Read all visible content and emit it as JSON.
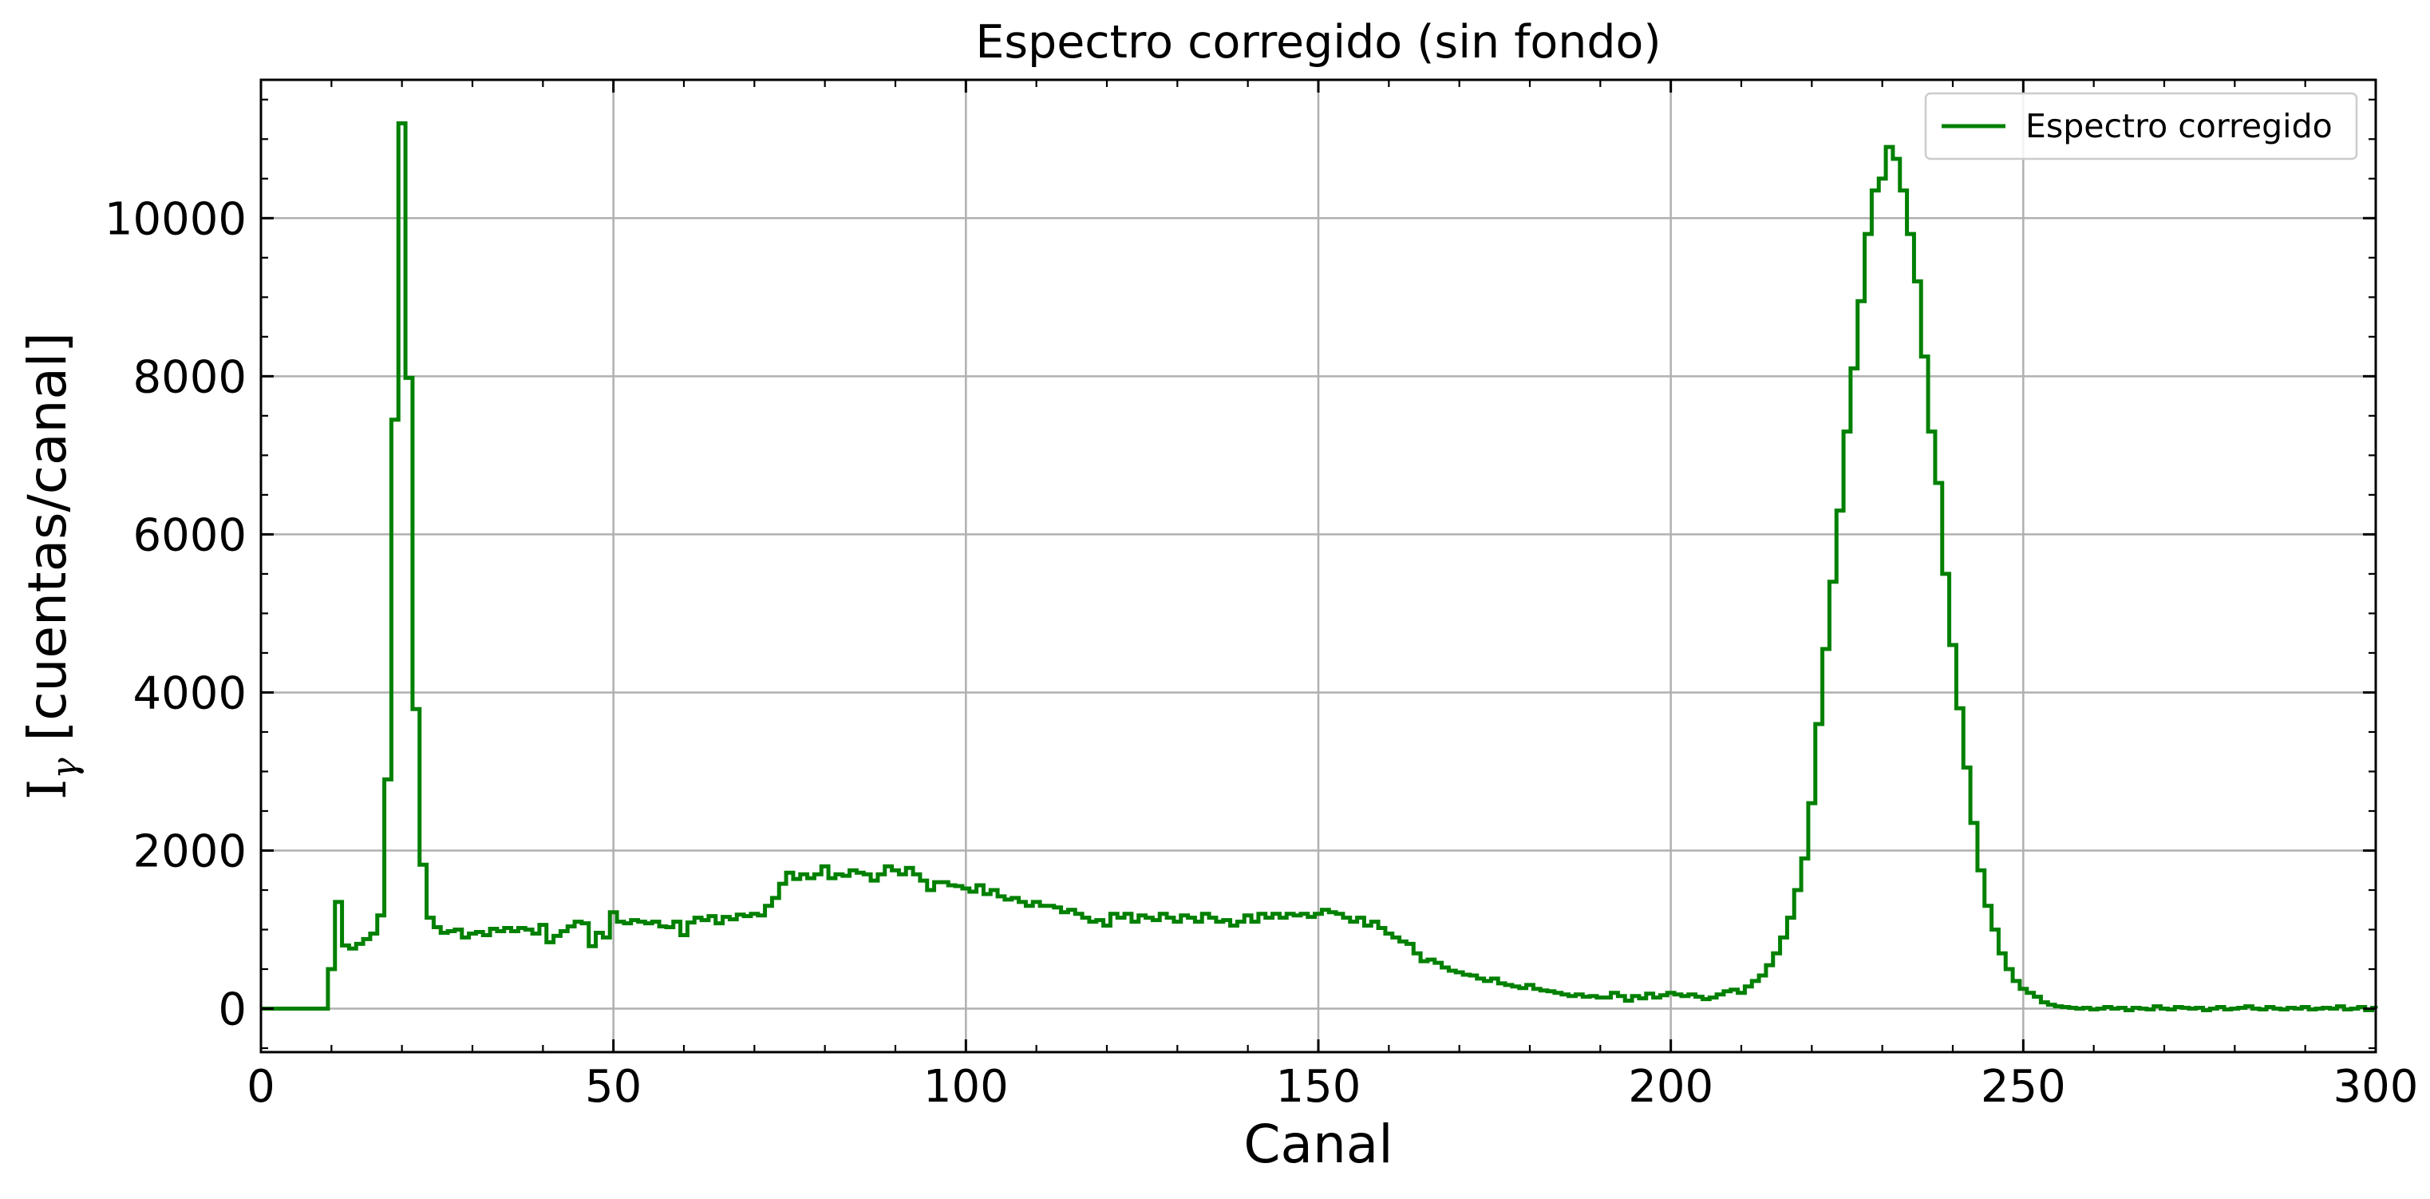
{
  "chart_data": {
    "type": "line",
    "step": true,
    "title": "Espectro corregido (sin fondo)",
    "xlabel": "Canal",
    "ylabel_main": "I",
    "ylabel_sub": "γ",
    "ylabel_rest": " [cuentas/canal]",
    "xlim": [
      0,
      300
    ],
    "ylim": [
      -550,
      11750
    ],
    "xticks": [
      0,
      50,
      100,
      150,
      200,
      250,
      300
    ],
    "yticks": [
      0,
      2000,
      4000,
      6000,
      8000,
      10000
    ],
    "x_minor_step": 10,
    "y_minor_step": 500,
    "grid": true,
    "legend_position": "top-right",
    "series": [
      {
        "name": "Espectro corregido",
        "color": "#008000",
        "x_start": 0,
        "x_step": 1,
        "values": [
          0,
          0,
          0,
          0,
          0,
          0,
          0,
          0,
          0,
          0,
          500,
          1350,
          800,
          760,
          820,
          880,
          950,
          1180,
          2900,
          7450,
          11200,
          7980,
          3790,
          1820,
          1150,
          1030,
          960,
          980,
          1000,
          900,
          950,
          970,
          930,
          1010,
          980,
          1020,
          980,
          1020,
          1000,
          950,
          1060,
          840,
          920,
          980,
          1040,
          1100,
          1080,
          790,
          960,
          900,
          1220,
          1100,
          1080,
          1120,
          1100,
          1080,
          1100,
          1040,
          1030,
          1100,
          930,
          1090,
          1150,
          1120,
          1170,
          1080,
          1160,
          1130,
          1190,
          1170,
          1200,
          1180,
          1300,
          1400,
          1580,
          1720,
          1640,
          1700,
          1650,
          1700,
          1800,
          1650,
          1700,
          1680,
          1750,
          1720,
          1700,
          1620,
          1700,
          1800,
          1750,
          1700,
          1780,
          1700,
          1620,
          1500,
          1600,
          1600,
          1560,
          1550,
          1520,
          1480,
          1560,
          1450,
          1500,
          1420,
          1380,
          1400,
          1350,
          1300,
          1350,
          1300,
          1300,
          1280,
          1220,
          1250,
          1200,
          1150,
          1100,
          1120,
          1050,
          1200,
          1150,
          1200,
          1100,
          1180,
          1150,
          1120,
          1200,
          1150,
          1100,
          1180,
          1150,
          1100,
          1200,
          1150,
          1100,
          1120,
          1050,
          1100,
          1180,
          1100,
          1200,
          1150,
          1200,
          1150,
          1200,
          1180,
          1200,
          1160,
          1200,
          1250,
          1220,
          1200,
          1150,
          1100,
          1150,
          1050,
          1100,
          1020,
          950,
          900,
          850,
          820,
          700,
          600,
          620,
          580,
          520,
          480,
          460,
          430,
          420,
          380,
          350,
          380,
          320,
          300,
          280,
          260,
          300,
          250,
          230,
          220,
          200,
          180,
          160,
          180,
          150,
          160,
          140,
          140,
          200,
          160,
          100,
          160,
          130,
          190,
          140,
          170,
          200,
          180,
          160,
          180,
          150,
          120,
          140,
          180,
          220,
          240,
          200,
          280,
          350,
          420,
          550,
          700,
          900,
          1150,
          1500,
          1900,
          2600,
          3600,
          4550,
          5400,
          6300,
          7300,
          8100,
          8950,
          9800,
          10350,
          10500,
          10900,
          10750,
          10350,
          9800,
          9200,
          8250,
          7300,
          6650,
          5500,
          4600,
          3800,
          3050,
          2350,
          1750,
          1300,
          1000,
          700,
          500,
          350,
          250,
          200,
          150,
          80,
          50,
          30,
          20,
          10,
          0,
          10,
          -10,
          0,
          20,
          0,
          10,
          -20,
          10,
          0,
          -10,
          30,
          0,
          -10,
          20,
          10,
          0,
          10,
          -20,
          0,
          20,
          -10,
          0,
          10,
          30,
          0,
          -10,
          20,
          0,
          -10,
          10,
          0,
          20,
          -10,
          0,
          10,
          0,
          30,
          -10,
          0,
          20,
          -20,
          10,
          0,
          20,
          10
        ]
      }
    ]
  }
}
